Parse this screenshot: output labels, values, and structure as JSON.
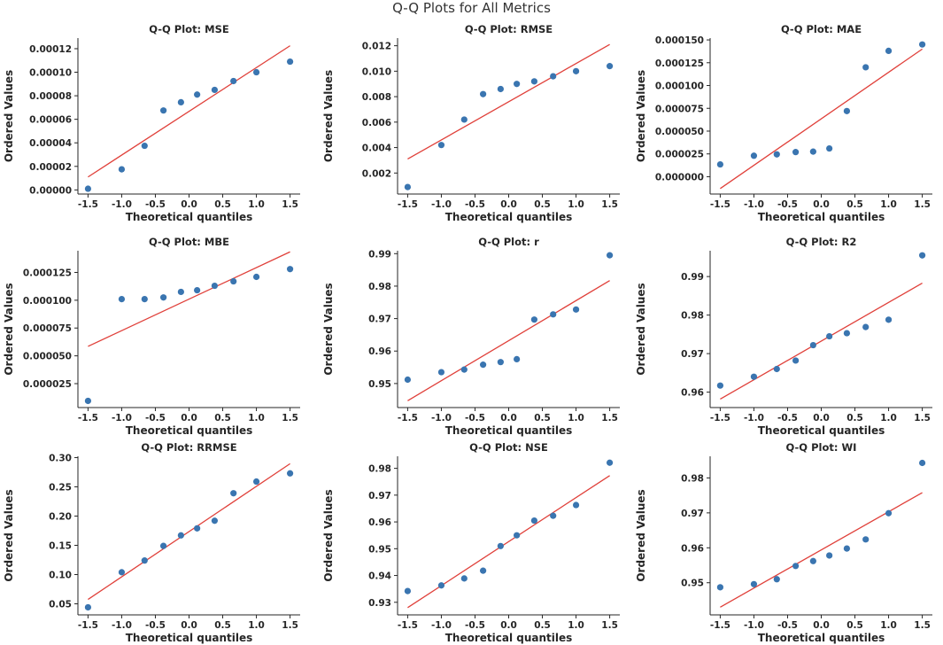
{
  "figure": {
    "title": "Q-Q Plots for All Metrics",
    "colors": {
      "point": "#3a75b0",
      "line": "#e0403a",
      "text": "#262626"
    }
  },
  "chart_data": [
    {
      "type": "scatter",
      "title": "Q-Q Plot: MSE",
      "xlabel": "Theoretical quantiles",
      "ylabel": "Ordered Values",
      "xlim": [
        -1.65,
        1.65
      ],
      "ylim": [
        -3.5e-06,
        0.000129
      ],
      "xticks": [
        -1.5,
        -1.0,
        -0.5,
        0.0,
        0.5,
        1.0,
        1.5
      ],
      "xtick_labels": [
        "-1.5",
        "-1.0",
        "-0.5",
        "0.0",
        "0.5",
        "1.0",
        "1.5"
      ],
      "yticks": [
        0.0,
        2e-05,
        4e-05,
        6e-05,
        8e-05,
        0.0001,
        0.00012
      ],
      "ytick_labels": [
        "0.00000",
        "0.00002",
        "0.00004",
        "0.00006",
        "0.00008",
        "0.00010",
        "0.00012"
      ],
      "x": [
        -1.5,
        -1.0,
        -0.66,
        -0.38,
        -0.12,
        0.12,
        0.38,
        0.66,
        1.0,
        1.5
      ],
      "y": [
        1e-06,
        1.75e-05,
        3.75e-05,
        6.75e-05,
        7.45e-05,
        8.1e-05,
        8.5e-05,
        9.25e-05,
        0.0001,
        0.000109
      ],
      "fit": {
        "x": [
          -1.5,
          1.5
        ],
        "y": [
          1.1e-05,
          0.0001225
        ]
      }
    },
    {
      "type": "scatter",
      "title": "Q-Q Plot: RMSE",
      "xlabel": "Theoretical quantiles",
      "ylabel": "Ordered Values",
      "xlim": [
        -1.65,
        1.65
      ],
      "ylim": [
        0.00035,
        0.0126
      ],
      "xticks": [
        -1.5,
        -1.0,
        -0.5,
        0.0,
        0.5,
        1.0,
        1.5
      ],
      "xtick_labels": [
        "-1.5",
        "-1.0",
        "-0.5",
        "0.0",
        "0.5",
        "1.0",
        "1.5"
      ],
      "yticks": [
        0.002,
        0.004,
        0.006,
        0.008,
        0.01,
        0.012
      ],
      "ytick_labels": [
        "0.002",
        "0.004",
        "0.006",
        "0.008",
        "0.010",
        "0.012"
      ],
      "x": [
        -1.5,
        -1.0,
        -0.66,
        -0.38,
        -0.12,
        0.12,
        0.38,
        0.66,
        1.0,
        1.5
      ],
      "y": [
        0.0009,
        0.0042,
        0.0062,
        0.0082,
        0.0086,
        0.009,
        0.0092,
        0.0096,
        0.01,
        0.0104
      ],
      "fit": {
        "x": [
          -1.5,
          1.5
        ],
        "y": [
          0.0031,
          0.0121
        ]
      }
    },
    {
      "type": "scatter",
      "title": "Q-Q Plot: MAE",
      "xlabel": "Theoretical quantiles",
      "ylabel": "Ordered Values",
      "xlim": [
        -1.65,
        1.65
      ],
      "ylim": [
        -1.9e-05,
        0.000152
      ],
      "xticks": [
        -1.5,
        -1.0,
        -0.5,
        0.0,
        0.5,
        1.0,
        1.5
      ],
      "xtick_labels": [
        "-1.5",
        "-1.0",
        "-0.5",
        "0.0",
        "0.5",
        "1.0",
        "1.5"
      ],
      "yticks": [
        0.0,
        2.5e-05,
        5e-05,
        7.5e-05,
        0.0001,
        0.000125,
        0.00015
      ],
      "ytick_labels": [
        "0.000000",
        "0.000025",
        "0.000050",
        "0.000075",
        "0.000100",
        "0.000125",
        "0.000150"
      ],
      "x": [
        -1.5,
        -1.0,
        -0.66,
        -0.38,
        -0.12,
        0.12,
        0.38,
        0.66,
        1.0,
        1.5
      ],
      "y": [
        1.35e-05,
        2.3e-05,
        2.45e-05,
        2.7e-05,
        2.75e-05,
        3.1e-05,
        7.2e-05,
        0.00012,
        0.000138,
        0.000145
      ],
      "fit": {
        "x": [
          -1.5,
          1.5
        ],
        "y": [
          -1.3e-05,
          0.00014
        ]
      }
    },
    {
      "type": "scatter",
      "title": "Q-Q Plot: MBE",
      "xlabel": "Theoretical quantiles",
      "ylabel": "Ordered Values",
      "xlim": [
        -1.65,
        1.65
      ],
      "ylim": [
        3.5e-06,
        0.0001445
      ],
      "xticks": [
        -1.5,
        -1.0,
        -0.5,
        0.0,
        0.5,
        1.0,
        1.5
      ],
      "xtick_labels": [
        "-1.5",
        "-1.0",
        "-0.5",
        "0.0",
        "0.5",
        "1.0",
        "1.5"
      ],
      "yticks": [
        2.5e-05,
        5e-05,
        7.5e-05,
        0.0001,
        0.000125
      ],
      "ytick_labels": [
        "0.000025",
        "0.000050",
        "0.000075",
        "0.000100",
        "0.000125"
      ],
      "x": [
        -1.5,
        -1.0,
        -0.66,
        -0.38,
        -0.12,
        0.12,
        0.38,
        0.66,
        1.0,
        1.5
      ],
      "y": [
        9.5e-06,
        0.000101,
        0.000101,
        0.0001025,
        0.0001075,
        0.000109,
        0.000113,
        0.000117,
        0.000121,
        0.000128
      ],
      "fit": {
        "x": [
          -1.5,
          1.5
        ],
        "y": [
          5.85e-05,
          0.0001435
        ]
      }
    },
    {
      "type": "scatter",
      "title": "Q-Q Plot: r",
      "xlabel": "Theoretical quantiles",
      "ylabel": "Ordered Values",
      "xlim": [
        -1.65,
        1.65
      ],
      "ylim": [
        0.9426,
        0.9909
      ],
      "xticks": [
        -1.5,
        -1.0,
        -0.5,
        0.0,
        0.5,
        1.0,
        1.5
      ],
      "xtick_labels": [
        "-1.5",
        "-1.0",
        "-0.5",
        "0.0",
        "0.5",
        "1.0",
        "1.5"
      ],
      "yticks": [
        0.95,
        0.96,
        0.97,
        0.98,
        0.99
      ],
      "ytick_labels": [
        "0.95",
        "0.96",
        "0.97",
        "0.98",
        "0.99"
      ],
      "x": [
        -1.5,
        -1.0,
        -0.66,
        -0.38,
        -0.12,
        0.12,
        0.38,
        0.66,
        1.0,
        1.5
      ],
      "y": [
        0.9512,
        0.9535,
        0.9543,
        0.9558,
        0.9566,
        0.9575,
        0.9697,
        0.9713,
        0.9728,
        0.9895
      ],
      "fit": {
        "x": [
          -1.5,
          1.5
        ],
        "y": [
          0.9447,
          0.9817
        ]
      }
    },
    {
      "type": "scatter",
      "title": "Q-Q Plot: R2",
      "xlabel": "Theoretical quantiles",
      "ylabel": "Ordered Values",
      "xlim": [
        -1.65,
        1.65
      ],
      "ylim": [
        0.956,
        0.9967
      ],
      "xticks": [
        -1.5,
        -1.0,
        -0.5,
        0.0,
        0.5,
        1.0,
        1.5
      ],
      "xtick_labels": [
        "-1.5",
        "-1.0",
        "-0.5",
        "0.0",
        "0.5",
        "1.0",
        "1.5"
      ],
      "yticks": [
        0.96,
        0.97,
        0.98,
        0.99
      ],
      "ytick_labels": [
        "0.96",
        "0.97",
        "0.98",
        "0.99"
      ],
      "x": [
        -1.5,
        -1.0,
        -0.66,
        -0.38,
        -0.12,
        0.12,
        0.38,
        0.66,
        1.0,
        1.5
      ],
      "y": [
        0.9617,
        0.964,
        0.966,
        0.9682,
        0.9722,
        0.9745,
        0.9753,
        0.9769,
        0.9788,
        0.9955
      ],
      "fit": {
        "x": [
          -1.5,
          1.5
        ],
        "y": [
          0.9582,
          0.9883
        ]
      }
    },
    {
      "type": "scatter",
      "title": "Q-Q Plot: RRMSE",
      "xlabel": "Theoretical quantiles",
      "ylabel": "Ordered Values",
      "xlim": [
        -1.65,
        1.65
      ],
      "ylim": [
        0.0311,
        0.3022
      ],
      "xticks": [
        -1.5,
        -1.0,
        -0.5,
        0.0,
        0.5,
        1.0,
        1.5
      ],
      "xtick_labels": [
        "-1.5",
        "-1.0",
        "-0.5",
        "0.0",
        "0.5",
        "1.0",
        "1.5"
      ],
      "yticks": [
        0.05,
        0.1,
        0.15,
        0.2,
        0.25,
        0.3
      ],
      "ytick_labels": [
        "0.05",
        "0.10",
        "0.15",
        "0.20",
        "0.25",
        "0.30"
      ],
      "x": [
        -1.5,
        -1.0,
        -0.66,
        -0.38,
        -0.12,
        0.12,
        0.38,
        0.66,
        1.0,
        1.5
      ],
      "y": [
        0.044,
        0.104,
        0.124,
        0.149,
        0.167,
        0.179,
        0.192,
        0.239,
        0.259,
        0.273
      ],
      "fit": {
        "x": [
          -1.5,
          1.5
        ],
        "y": [
          0.0575,
          0.2895
        ]
      }
    },
    {
      "type": "scatter",
      "title": "Q-Q Plot: NSE",
      "xlabel": "Theoretical quantiles",
      "ylabel": "Ordered Values",
      "xlim": [
        -1.65,
        1.65
      ],
      "ylim": [
        0.9253,
        0.9845
      ],
      "xticks": [
        -1.5,
        -1.0,
        -0.5,
        0.0,
        0.5,
        1.0,
        1.5
      ],
      "xtick_labels": [
        "-1.5",
        "-1.0",
        "-0.5",
        "0.0",
        "0.5",
        "1.0",
        "1.5"
      ],
      "yticks": [
        0.93,
        0.94,
        0.95,
        0.96,
        0.97,
        0.98
      ],
      "ytick_labels": [
        "0.93",
        "0.94",
        "0.95",
        "0.96",
        "0.97",
        "0.98"
      ],
      "x": [
        -1.5,
        -1.0,
        -0.66,
        -0.38,
        -0.12,
        0.12,
        0.38,
        0.66,
        1.0,
        1.5
      ],
      "y": [
        0.9342,
        0.9363,
        0.9389,
        0.9418,
        0.951,
        0.955,
        0.9605,
        0.9623,
        0.9663,
        0.9821
      ],
      "fit": {
        "x": [
          -1.5,
          1.5
        ],
        "y": [
          0.928,
          0.9773
        ]
      }
    },
    {
      "type": "scatter",
      "title": "Q-Q Plot: WI",
      "xlabel": "Theoretical quantiles",
      "ylabel": "Ordered Values",
      "xlim": [
        -1.65,
        1.65
      ],
      "ylim": [
        0.9408,
        0.9862
      ],
      "xticks": [
        -1.5,
        -1.0,
        -0.5,
        0.0,
        0.5,
        1.0,
        1.5
      ],
      "xtick_labels": [
        "-1.5",
        "-1.0",
        "-0.5",
        "0.0",
        "0.5",
        "1.0",
        "1.5"
      ],
      "yticks": [
        0.95,
        0.96,
        0.97,
        0.98
      ],
      "ytick_labels": [
        "0.95",
        "0.96",
        "0.97",
        "0.98"
      ],
      "x": [
        -1.5,
        -1.0,
        -0.66,
        -0.38,
        -0.12,
        0.12,
        0.38,
        0.66,
        1.0,
        1.5
      ],
      "y": [
        0.9487,
        0.9496,
        0.951,
        0.9548,
        0.9562,
        0.9578,
        0.9598,
        0.9624,
        0.9699,
        0.9843
      ],
      "fit": {
        "x": [
          -1.5,
          1.5
        ],
        "y": [
          0.943,
          0.9758
        ]
      }
    }
  ]
}
